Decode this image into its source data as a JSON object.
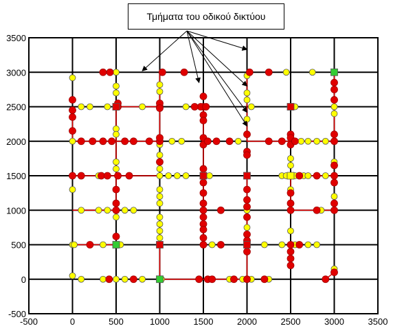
{
  "chart_data": {
    "type": "scatter",
    "title": "",
    "xlabel": "",
    "ylabel": "",
    "xlim": [
      -500,
      3500
    ],
    "ylim": [
      -500,
      3500
    ],
    "x_ticks": [
      -500,
      0,
      500,
      1000,
      1500,
      2000,
      2500,
      3000,
      3500
    ],
    "y_ticks": [
      -500,
      0,
      500,
      1000,
      1500,
      2000,
      2500,
      3000,
      3500
    ],
    "grid": true,
    "annotation": {
      "text": "Τμήματα του οδικού δικτύου",
      "arrow_targets": [
        [
          2000,
          3330
        ],
        [
          800,
          3020
        ],
        [
          1450,
          2850
        ],
        [
          2000,
          2800
        ],
        [
          2000,
          2420
        ],
        [
          2000,
          2220
        ]
      ]
    },
    "colors": {
      "road": "#e00000",
      "red": "#e00000",
      "yellow": "#ffff00",
      "green": "#33cc33",
      "grid": "#000000"
    },
    "road_segments": [
      [
        [
          0,
          2500
        ],
        [
          0,
          2000
        ],
        [
          1000,
          2000
        ],
        [
          1000,
          3000
        ]
      ],
      [
        [
          0,
          1500
        ],
        [
          1000,
          1500
        ]
      ],
      [
        [
          500,
          1500
        ],
        [
          500,
          2500
        ]
      ],
      [
        [
          500,
          2500
        ],
        [
          1000,
          2500
        ]
      ],
      [
        [
          0,
          1000
        ],
        [
          500,
          1000
        ]
      ],
      [
        [
          500,
          1000
        ],
        [
          500,
          1500
        ]
      ],
      [
        [
          0,
          500
        ],
        [
          500,
          500
        ]
      ],
      [
        [
          1000,
          500
        ],
        [
          1000,
          0
        ]
      ],
      [
        [
          1000,
          0
        ],
        [
          2000,
          0
        ]
      ],
      [
        [
          1500,
          2500
        ],
        [
          1500,
          500
        ]
      ],
      [
        [
          2000,
          3000
        ],
        [
          2000,
          2000
        ],
        [
          2500,
          2000
        ],
        [
          3000,
          2000
        ],
        [
          3000,
          3000
        ]
      ],
      [
        [
          2000,
          1500
        ],
        [
          2000,
          500
        ],
        [
          2000,
          0
        ]
      ],
      [
        [
          2500,
          1500
        ],
        [
          3000,
          1500
        ]
      ],
      [
        [
          2500,
          1500
        ],
        [
          2500,
          1000
        ]
      ],
      [
        [
          2500,
          1000
        ],
        [
          3000,
          1000
        ]
      ],
      [
        [
          2500,
          500
        ],
        [
          2500,
          200
        ]
      ],
      [
        [
          2900,
          0
        ],
        [
          3000,
          100
        ]
      ]
    ],
    "red_points": [
      [
        350,
        3000
      ],
      [
        430,
        3000
      ],
      [
        1030,
        3000
      ],
      [
        1280,
        3000
      ],
      [
        2030,
        3000
      ],
      [
        2250,
        3000
      ],
      [
        3000,
        2850
      ],
      [
        3000,
        2750
      ],
      [
        3000,
        2600
      ],
      [
        0,
        2600
      ],
      [
        0,
        2450
      ],
      [
        0,
        2350
      ],
      [
        520,
        2500
      ],
      [
        1000,
        2500
      ],
      [
        1000,
        2550
      ],
      [
        1500,
        2500
      ],
      [
        1470,
        2500
      ],
      [
        1530,
        2500
      ],
      [
        1400,
        2500
      ],
      [
        1500,
        2650
      ],
      [
        1500,
        2380
      ],
      [
        1500,
        2300
      ],
      [
        0,
        2150
      ],
      [
        100,
        2000
      ],
      [
        230,
        2000
      ],
      [
        350,
        2000
      ],
      [
        450,
        2000
      ],
      [
        600,
        2000
      ],
      [
        700,
        2000
      ],
      [
        880,
        2000
      ],
      [
        1000,
        2000
      ],
      [
        1000,
        2050
      ],
      [
        1500,
        2050
      ],
      [
        1500,
        1950
      ],
      [
        1550,
        2000
      ],
      [
        1650,
        2000
      ],
      [
        1800,
        2000
      ],
      [
        2000,
        2100
      ],
      [
        2000,
        1850
      ],
      [
        2250,
        2000
      ],
      [
        2400,
        2000
      ],
      [
        2500,
        2100
      ],
      [
        2500,
        2050
      ],
      [
        2500,
        1950
      ],
      [
        2550,
        2000
      ],
      [
        3000,
        2000
      ],
      [
        3000,
        2100
      ],
      [
        0,
        1500
      ],
      [
        100,
        1500
      ],
      [
        330,
        1500
      ],
      [
        400,
        1500
      ],
      [
        520,
        1500
      ],
      [
        650,
        1500
      ],
      [
        1000,
        1700
      ],
      [
        1500,
        1500
      ],
      [
        1500,
        1600
      ],
      [
        1500,
        1400
      ],
      [
        2000,
        1800
      ],
      [
        2000,
        1500
      ],
      [
        2000,
        1300
      ],
      [
        2000,
        1150
      ],
      [
        2500,
        1500
      ],
      [
        2600,
        1500
      ],
      [
        2800,
        1500
      ],
      [
        3000,
        1650
      ],
      [
        3000,
        1500
      ],
      [
        3000,
        1400
      ],
      [
        500,
        1300
      ],
      [
        500,
        1100
      ],
      [
        500,
        1000
      ],
      [
        1500,
        1250
      ],
      [
        1500,
        1000
      ],
      [
        1500,
        900
      ],
      [
        1500,
        800
      ],
      [
        1500,
        1100
      ],
      [
        1700,
        1000
      ],
      [
        2000,
        1050
      ],
      [
        2000,
        900
      ],
      [
        2500,
        1250
      ],
      [
        2500,
        1100
      ],
      [
        2500,
        1000
      ],
      [
        3000,
        1100
      ],
      [
        3000,
        1000
      ],
      [
        2800,
        1000
      ],
      [
        200,
        500
      ],
      [
        500,
        620
      ],
      [
        500,
        500
      ],
      [
        1000,
        500
      ],
      [
        1500,
        720
      ],
      [
        1500,
        600
      ],
      [
        1500,
        500
      ],
      [
        1700,
        500
      ],
      [
        2000,
        650
      ],
      [
        2000,
        560
      ],
      [
        2000,
        400
      ],
      [
        2500,
        400
      ],
      [
        2500,
        300
      ],
      [
        2500,
        200
      ],
      [
        2500,
        500
      ],
      [
        2600,
        500
      ],
      [
        420,
        0
      ],
      [
        700,
        0
      ],
      [
        1000,
        0
      ],
      [
        1450,
        0
      ],
      [
        1550,
        0
      ],
      [
        1600,
        0
      ],
      [
        1850,
        0
      ],
      [
        2000,
        0
      ],
      [
        2200,
        0
      ],
      [
        2900,
        0
      ],
      [
        3000,
        100
      ],
      [
        520,
        2550
      ],
      [
        1000,
        2480
      ]
    ],
    "yellow_points": [
      [
        0,
        2920
      ],
      [
        500,
        3000
      ],
      [
        500,
        2800
      ],
      [
        500,
        2700
      ],
      [
        1000,
        2820
      ],
      [
        1000,
        2720
      ],
      [
        2000,
        2950
      ],
      [
        2000,
        2700
      ],
      [
        2000,
        2600
      ],
      [
        2450,
        3000
      ],
      [
        2750,
        3000
      ],
      [
        3000,
        2500
      ],
      [
        3000,
        2400
      ],
      [
        100,
        2500
      ],
      [
        200,
        2500
      ],
      [
        400,
        2500
      ],
      [
        800,
        2500
      ],
      [
        1300,
        2500
      ],
      [
        2050,
        2500
      ],
      [
        2550,
        2500
      ],
      [
        2000,
        2320
      ],
      [
        500,
        2180
      ],
      [
        500,
        2100
      ],
      [
        1000,
        1950
      ],
      [
        1140,
        2000
      ],
      [
        1250,
        2000
      ],
      [
        1900,
        2000
      ],
      [
        2620,
        2000
      ],
      [
        2700,
        2000
      ],
      [
        2800,
        2000
      ],
      [
        2900,
        2000
      ],
      [
        0,
        2000
      ],
      [
        1000,
        1800
      ],
      [
        1000,
        1600
      ],
      [
        1000,
        1500
      ],
      [
        1100,
        1500
      ],
      [
        1200,
        1500
      ],
      [
        1300,
        1500
      ],
      [
        1570,
        1500
      ],
      [
        2400,
        1500
      ],
      [
        2450,
        1500
      ],
      [
        2550,
        1500
      ],
      [
        2650,
        1500
      ],
      [
        2700,
        1500
      ],
      [
        2900,
        1500
      ],
      [
        3000,
        1200
      ],
      [
        3000,
        1700
      ],
      [
        2500,
        1750
      ],
      [
        2500,
        1650
      ],
      [
        2500,
        1300
      ],
      [
        300,
        1500
      ],
      [
        0,
        1300
      ],
      [
        500,
        1700
      ],
      [
        500,
        1600
      ],
      [
        1000,
        1300
      ],
      [
        1000,
        1200
      ],
      [
        1000,
        1100
      ],
      [
        2000,
        1000
      ],
      [
        100,
        1000
      ],
      [
        300,
        1000
      ],
      [
        400,
        1000
      ],
      [
        600,
        1000
      ],
      [
        700,
        1000
      ],
      [
        500,
        1100
      ],
      [
        500,
        900
      ],
      [
        2850,
        1000
      ],
      [
        1000,
        900
      ],
      [
        1000,
        800
      ],
      [
        1000,
        700
      ],
      [
        0,
        500
      ],
      [
        20,
        500
      ],
      [
        350,
        500
      ],
      [
        550,
        500
      ],
      [
        1000,
        600
      ],
      [
        1600,
        500
      ],
      [
        1700,
        500
      ],
      [
        2200,
        500
      ],
      [
        2400,
        500
      ],
      [
        2550,
        500
      ],
      [
        2700,
        500
      ],
      [
        2800,
        500
      ],
      [
        2500,
        700
      ],
      [
        2000,
        750
      ],
      [
        0,
        50
      ],
      [
        100,
        0
      ],
      [
        350,
        0
      ],
      [
        500,
        0
      ],
      [
        600,
        0
      ],
      [
        800,
        0
      ],
      [
        1020,
        0
      ],
      [
        1800,
        0
      ],
      [
        1950,
        0
      ],
      [
        2050,
        0
      ],
      [
        2250,
        0
      ],
      [
        3000,
        150
      ]
    ],
    "red_squares": [
      [
        500,
        2500
      ],
      [
        2500,
        2500
      ],
      [
        1500,
        1500
      ],
      [
        2000,
        1500
      ],
      [
        1000,
        500
      ],
      [
        2000,
        500
      ]
    ],
    "yellow_squares": [
      [
        2500,
        1500
      ]
    ],
    "green_squares": [
      [
        3000,
        3000
      ],
      [
        500,
        500
      ],
      [
        1000,
        0
      ]
    ],
    "callout_text": "Τμήματα του οδικού δικτύου"
  }
}
